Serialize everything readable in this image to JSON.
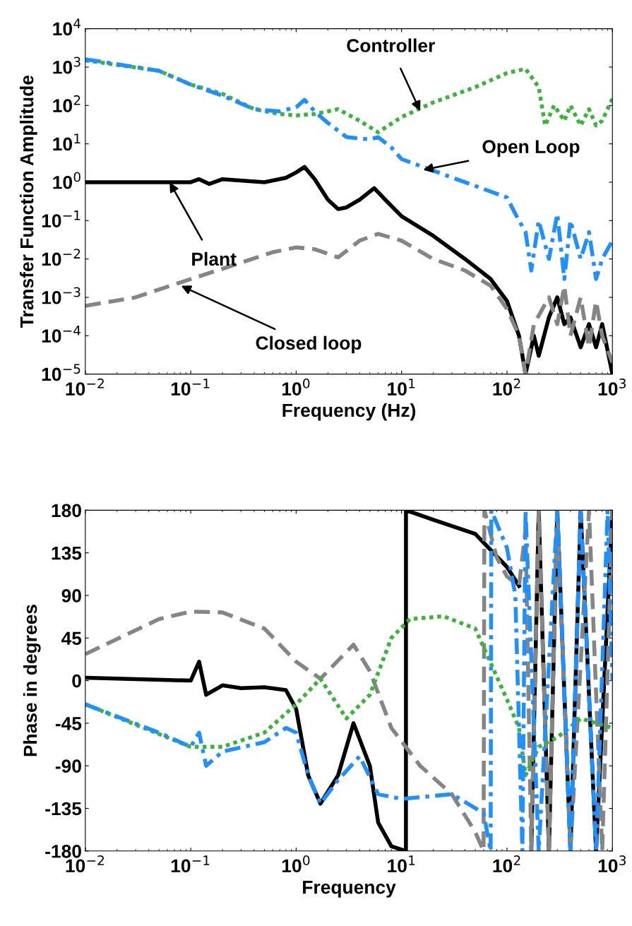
{
  "chart_data": [
    {
      "type": "line",
      "xlabel": "Frequency (Hz)",
      "ylabel": "Transfer Function Amplitude",
      "log": "xy",
      "grid": false,
      "legend": false,
      "xlim": [
        0.01,
        1000
      ],
      "ylim": [
        1e-05,
        10000
      ],
      "xticks": [
        {
          "value": 0.01,
          "label": "10$^{−2}$"
        },
        {
          "value": 0.1,
          "label": "10$^{−1}$"
        },
        {
          "value": 1,
          "label": "10$^{0}$"
        },
        {
          "value": 10,
          "label": "10$^{1}$"
        },
        {
          "value": 100,
          "label": "10$^{2}$"
        },
        {
          "value": 1000,
          "label": "10$^{3}$"
        }
      ],
      "yticks": [
        {
          "value": 1e-05,
          "label": "10$^{−5}$"
        },
        {
          "value": 0.0001,
          "label": "10$^{−4}$"
        },
        {
          "value": 0.001,
          "label": "10$^{−3}$"
        },
        {
          "value": 0.01,
          "label": "10$^{−2}$"
        },
        {
          "value": 0.1,
          "label": "10$^{−1}$"
        },
        {
          "value": 1,
          "label": "10$^{0}$"
        },
        {
          "value": 10,
          "label": "10$^{1}$"
        },
        {
          "value": 100,
          "label": "10$^{2}$"
        },
        {
          "value": 1000,
          "label": "10$^{3}$"
        },
        {
          "value": 10000,
          "label": "10$^{4}$"
        }
      ],
      "series": [
        {
          "color": "#000000",
          "line_style": "solid",
          "x": [
            0.01,
            0.05,
            0.1,
            0.12,
            0.15,
            0.2,
            0.5,
            0.8,
            1.0,
            1.2,
            1.5,
            2,
            2.5,
            3,
            4,
            5.5,
            7,
            10,
            20,
            40,
            70,
            100,
            130,
            150,
            180,
            200,
            250,
            300,
            350,
            400,
            500,
            600,
            700,
            800,
            1000
          ],
          "values": [
            1,
            1,
            1.0,
            1.2,
            0.9,
            1.2,
            1.0,
            1.3,
            1.8,
            2.5,
            1.2,
            0.35,
            0.2,
            0.22,
            0.35,
            0.7,
            0.35,
            0.13,
            0.04,
            0.01,
            0.003,
            0.0008,
            0.0001,
            1e-05,
            0.0001,
            3e-05,
            0.0003,
            0.001,
            0.0002,
            0.0003,
            5e-05,
            0.0002,
            5e-05,
            0.0002,
            1e-05
          ]
        },
        {
          "color": "#858585",
          "line_style": "dashed",
          "x": [
            0.01,
            0.03,
            0.1,
            0.3,
            0.6,
            1,
            1.5,
            2.5,
            4,
            6,
            10,
            20,
            40,
            70,
            100,
            130,
            150,
            180,
            250,
            300,
            350,
            400,
            500,
            600,
            700,
            800,
            1000
          ],
          "values": [
            0.0006,
            0.001,
            0.003,
            0.008,
            0.015,
            0.02,
            0.018,
            0.011,
            0.03,
            0.045,
            0.03,
            0.01,
            0.005,
            0.002,
            0.0005,
            0.0001,
            1e-05,
            0.0002,
            0.001,
            0.0002,
            0.002,
            0.0001,
            0.001,
            5e-05,
            0.0008,
            0.0001,
            2e-05
          ]
        },
        {
          "color": "#3ab53a",
          "line_style": "dotted",
          "x": [
            0.01,
            0.05,
            0.1,
            0.2,
            0.4,
            0.7,
            1,
            1.5,
            2.5,
            4,
            6,
            10,
            20,
            50,
            100,
            150,
            200,
            230,
            280,
            350,
            400,
            500,
            600,
            700,
            800,
            1000
          ],
          "values": [
            1500,
            800,
            350,
            200,
            80,
            60,
            55,
            60,
            80,
            40,
            20,
            50,
            120,
            300,
            700,
            900,
            300,
            30,
            100,
            40,
            100,
            30,
            80,
            30,
            40,
            150
          ]
        },
        {
          "color": "#1e90ff",
          "line_style": "dashdot",
          "x": [
            0.01,
            0.05,
            0.1,
            0.2,
            0.4,
            0.7,
            1,
            1.2,
            1.5,
            2,
            3,
            5,
            6,
            8,
            10,
            20,
            50,
            100,
            120,
            150,
            170,
            200,
            250,
            300,
            350,
            400,
            500,
            600,
            700,
            800,
            1000
          ],
          "values": [
            1600,
            800,
            350,
            180,
            80,
            70,
            90,
            140,
            70,
            35,
            15,
            13,
            15,
            8,
            4,
            2,
            0.8,
            0.4,
            0.15,
            0.05,
            0.005,
            0.1,
            0.01,
            0.15,
            0.003,
            0.1,
            0.01,
            0.05,
            0.003,
            0.01,
            0.03
          ]
        }
      ],
      "annotations": [
        {
          "text": "Controller",
          "x": 15,
          "y": 72
        },
        {
          "text": "Open Loop",
          "x": 16,
          "y": 2.1
        },
        {
          "text": "Plant",
          "x": 0.063,
          "y": 1
        },
        {
          "text": "Closed loop",
          "x": 0.081,
          "y": 0.002
        }
      ]
    },
    {
      "type": "line",
      "xlabel": "Frequency",
      "ylabel": "Phase in degrees",
      "log": "x",
      "grid": false,
      "legend": false,
      "xlim": [
        0.01,
        1000
      ],
      "ylim": [
        -180,
        180
      ],
      "xticks": [
        {
          "value": 0.01,
          "label": "10$^{−2}$"
        },
        {
          "value": 0.1,
          "label": "10$^{−1}$"
        },
        {
          "value": 1,
          "label": "10$^{0}$"
        },
        {
          "value": 10,
          "label": "10$^{1}$"
        },
        {
          "value": 100,
          "label": "10$^{2}$"
        },
        {
          "value": 1000,
          "label": "10$^{3}$"
        }
      ],
      "yticks": [
        -180,
        -135,
        -90,
        -45,
        0,
        45,
        90,
        135,
        180
      ],
      "series": [
        {
          "color": "#000000",
          "line_style": "solid",
          "x": [
            0.01,
            0.1,
            0.12,
            0.14,
            0.2,
            0.3,
            0.5,
            0.8,
            1,
            1.3,
            1.7,
            2.5,
            3.5,
            5,
            6,
            8,
            11,
            11.01,
            20,
            50,
            100,
            130,
            150,
            170,
            200,
            250,
            300,
            400,
            500,
            700,
            1000
          ],
          "values": [
            3,
            0,
            20,
            -15,
            -5,
            -8,
            -7,
            -10,
            -30,
            -100,
            -130,
            -100,
            -45,
            -90,
            -150,
            -175,
            -180,
            180,
            170,
            155,
            120,
            100,
            null,
            -180,
            180,
            -180,
            180,
            -180,
            180,
            -180,
            180
          ]
        },
        {
          "color": "#858585",
          "line_style": "dashed",
          "x": [
            0.01,
            0.05,
            0.1,
            0.2,
            0.5,
            1,
            1.7,
            3.5,
            5,
            8,
            15,
            30,
            50,
            60,
            61,
            80,
            100,
            130,
            150,
            170,
            200,
            250,
            300,
            400,
            600,
            800,
            1000
          ],
          "values": [
            28,
            65,
            73,
            72,
            55,
            20,
            2,
            38,
            10,
            -50,
            -90,
            -120,
            -160,
            -180,
            180,
            130,
            110,
            100,
            160,
            -180,
            180,
            -180,
            180,
            -180,
            180,
            -180,
            180
          ]
        },
        {
          "color": "#3ab53a",
          "line_style": "dotted",
          "x": [
            0.01,
            0.1,
            0.2,
            0.5,
            1,
            1.7,
            3,
            5,
            8,
            12,
            25,
            50,
            100,
            130,
            150,
            200,
            300,
            500,
            1000
          ],
          "values": [
            -25,
            -70,
            -70,
            -55,
            -25,
            2,
            -40,
            -15,
            45,
            65,
            68,
            55,
            -20,
            -50,
            -100,
            -70,
            -60,
            -40,
            -50
          ]
        },
        {
          "color": "#1e90ff",
          "line_style": "dashdot",
          "x": [
            0.01,
            0.05,
            0.1,
            0.12,
            0.14,
            0.2,
            0.5,
            0.8,
            1,
            1.3,
            1.7,
            2.5,
            4,
            6,
            10,
            30,
            60,
            70,
            71,
            100,
            120,
            140,
            150,
            200,
            300,
            400,
            500,
            700,
            900,
            1000
          ],
          "values": [
            -25,
            -55,
            -70,
            -55,
            -90,
            -75,
            -65,
            -50,
            -55,
            -100,
            -130,
            -105,
            -80,
            -120,
            -125,
            -120,
            -140,
            -180,
            180,
            140,
            90,
            -180,
            180,
            -180,
            180,
            -180,
            180,
            -180,
            180,
            0
          ]
        }
      ]
    }
  ]
}
